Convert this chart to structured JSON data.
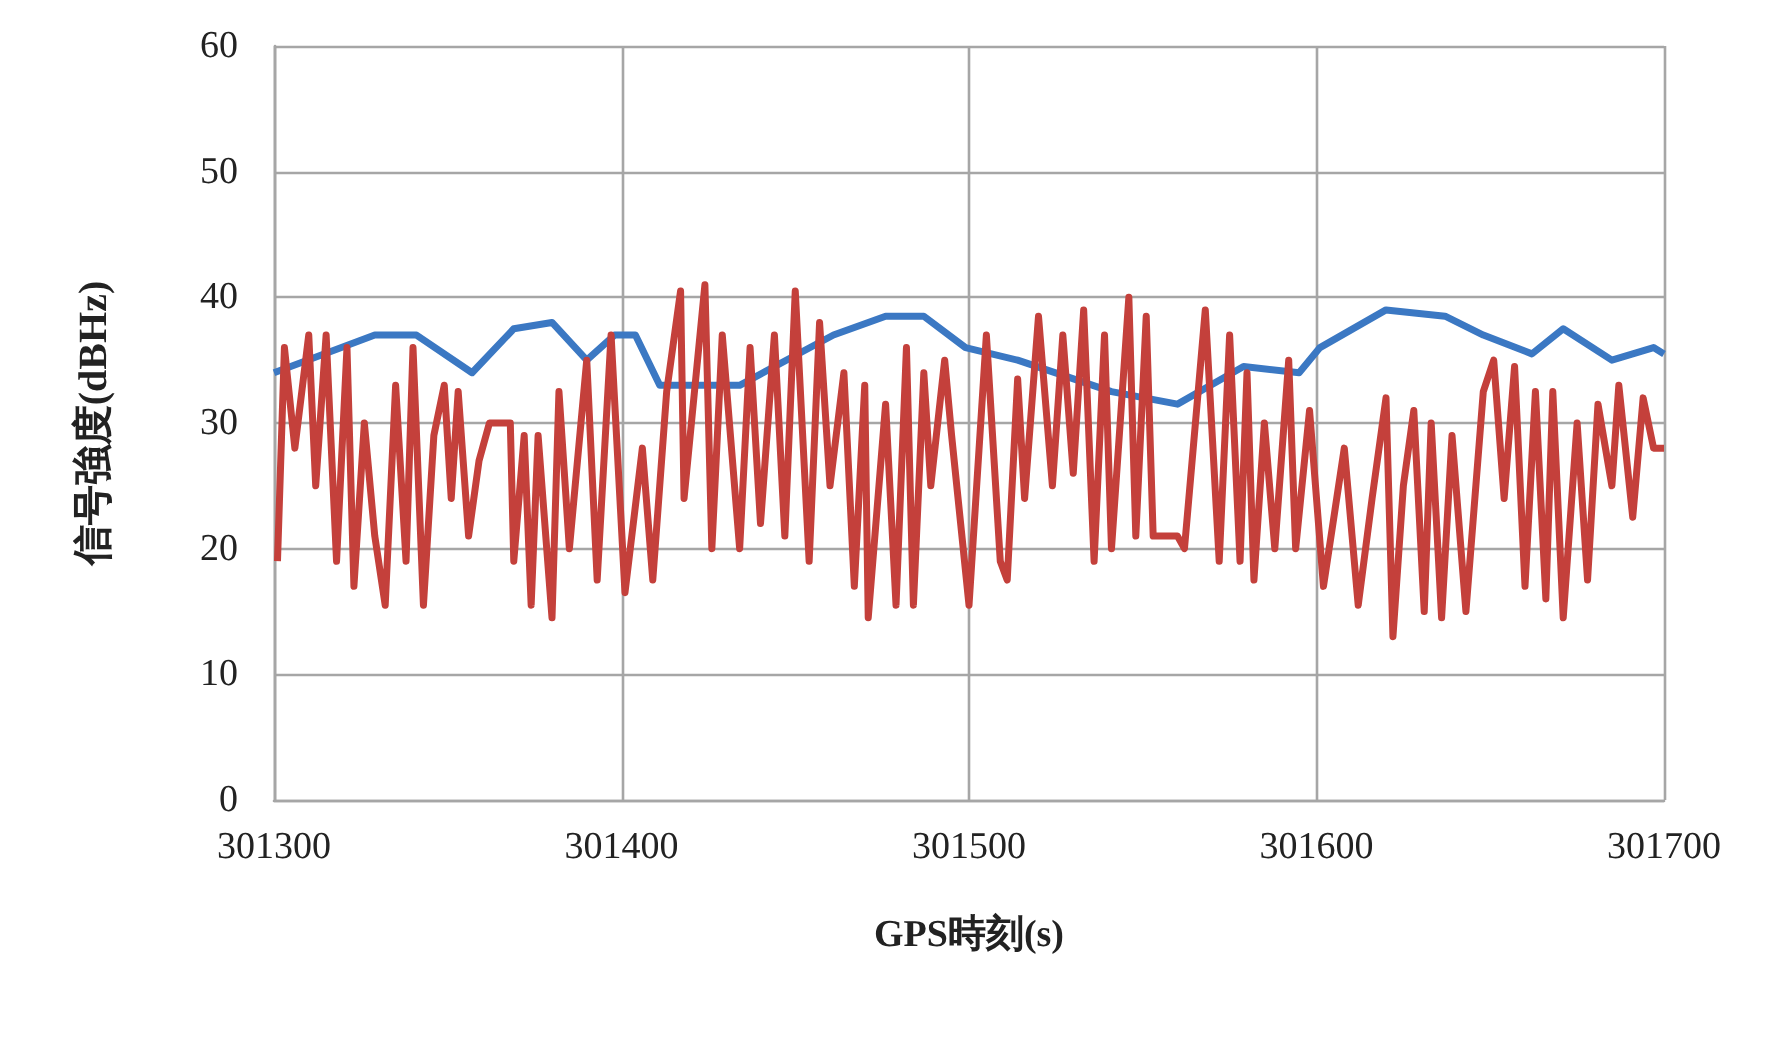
{
  "chart_data": {
    "type": "line",
    "xlabel": "GPS時刻(s)",
    "ylabel": "信号強度(dBHz)",
    "xlim": [
      301300,
      301700
    ],
    "xticks": [
      301300,
      301400,
      301500,
      301600,
      301700
    ],
    "ylim": [
      0,
      60
    ],
    "yticks": [
      0,
      10,
      20,
      30,
      40,
      50,
      60
    ],
    "grid": true,
    "marker": "none",
    "line_style": "solid",
    "series": [
      {
        "color": "#3b78c3",
        "x": [
          301300,
          301329,
          301341,
          301357,
          301369,
          301380,
          301390,
          301398,
          301404,
          301411,
          301434,
          301461,
          301476,
          301487,
          301499,
          301514,
          301541,
          301560,
          301579,
          301595,
          301601,
          301620,
          301637,
          301648,
          301662,
          301671,
          301685,
          301697,
          301700
        ],
        "values": [
          34,
          37,
          37,
          34,
          37.5,
          38,
          35,
          37,
          37,
          33,
          33,
          37,
          38.5,
          38.5,
          36,
          35,
          32.5,
          31.5,
          34.5,
          34,
          36,
          39,
          38.5,
          37,
          35.5,
          37.5,
          35,
          36,
          35.5
        ]
      },
      {
        "color": "#c4403b",
        "x": [
          301301,
          301303,
          301306,
          301310,
          301312,
          301315,
          301318,
          301321,
          301323,
          301326,
          301329,
          301332,
          301335,
          301338,
          301340,
          301343,
          301346,
          301349,
          301351,
          301353,
          301356,
          301359,
          301362,
          301368,
          301369,
          301372,
          301374,
          301376,
          301380,
          301382,
          301385,
          301390,
          301393,
          301397,
          301401,
          301406,
          301409,
          301413,
          301417,
          301418,
          301424,
          301426,
          301429,
          301434,
          301437,
          301440,
          301444,
          301447,
          301450,
          301454,
          301457,
          301460,
          301464,
          301467,
          301470,
          301471,
          301476,
          301479,
          301482,
          301484,
          301487,
          301489,
          301493,
          301495,
          301500,
          301505,
          301509,
          301511,
          301514,
          301516,
          301520,
          301524,
          301527,
          301530,
          301533,
          301536,
          301539,
          301541,
          301546,
          301548,
          301551,
          301553,
          301560,
          301562,
          301568,
          301572,
          301575,
          301578,
          301580,
          301582,
          301585,
          301588,
          301592,
          301594,
          301598,
          301602,
          301608,
          301612,
          301616,
          301620,
          301622,
          301625,
          301628,
          301631,
          301633,
          301636,
          301639,
          301643,
          301648,
          301651,
          301654,
          301657,
          301660,
          301663,
          301666,
          301668,
          301671,
          301675,
          301678,
          301681,
          301685,
          301687,
          301691,
          301694,
          301697,
          301700
        ],
        "values": [
          19,
          36,
          28,
          37,
          25,
          37,
          19,
          36,
          17,
          30,
          21,
          15.5,
          33,
          19,
          36,
          15.5,
          29,
          33,
          24,
          32.5,
          21,
          27,
          30,
          30,
          19,
          29,
          15.5,
          29,
          14.5,
          32.5,
          20,
          35,
          17.5,
          37,
          16.5,
          28,
          17.5,
          32.5,
          40.5,
          24,
          41,
          20,
          37,
          20,
          36,
          22,
          37,
          21,
          40.5,
          19,
          38,
          25,
          34,
          17,
          33,
          14.5,
          31.5,
          15.5,
          36,
          15.5,
          34,
          25,
          35,
          29,
          15.5,
          37,
          19,
          17.5,
          33.5,
          24,
          38.5,
          25,
          37,
          26,
          39,
          19,
          37,
          20,
          40,
          21,
          38.5,
          21,
          21,
          20,
          39,
          19,
          37,
          19,
          34,
          17.5,
          30,
          20,
          35,
          20,
          31,
          17,
          28,
          15.5,
          24,
          32,
          13,
          25,
          31,
          15,
          30,
          14.5,
          29,
          15,
          32.5,
          35,
          24,
          34.5,
          17,
          32.5,
          16,
          32.5,
          14.5,
          30,
          17.5,
          31.5,
          25,
          33,
          22.5,
          32,
          28,
          28
        ]
      }
    ]
  }
}
